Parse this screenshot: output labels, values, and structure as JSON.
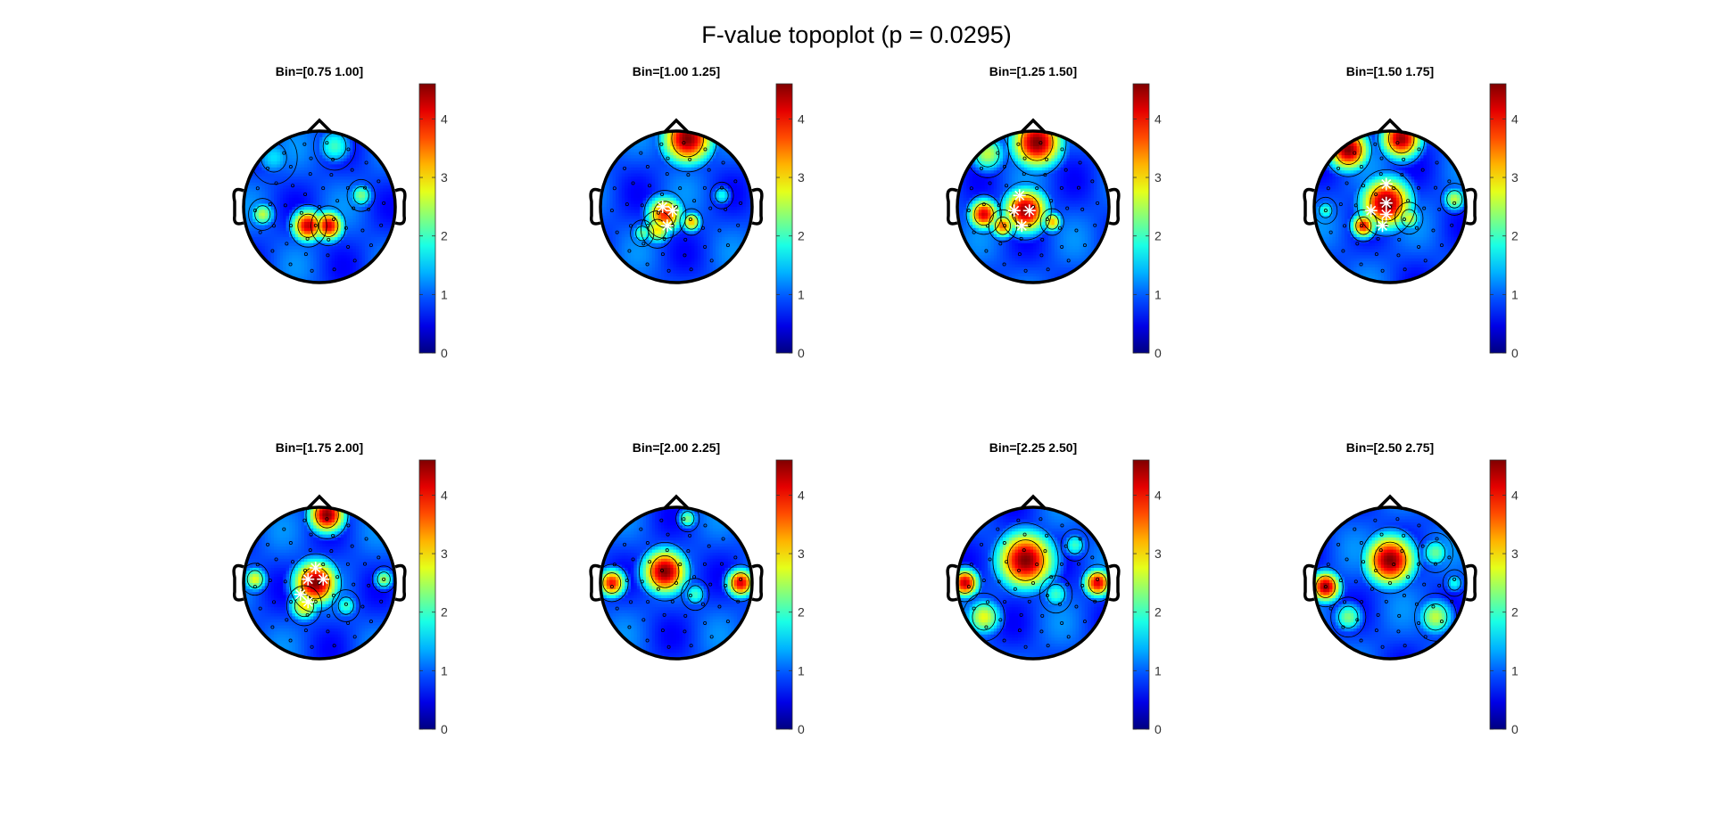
{
  "figure": {
    "title": "F-value topoplot (p = 0.0295)"
  },
  "chart_data": {
    "type": "heatmap",
    "title": "F-value topoplot (p = 0.0295)",
    "colormap": "jet",
    "clim": [
      0,
      4.6
    ],
    "colorbar_ticks": [
      0,
      1,
      2,
      3,
      4
    ],
    "panels": [
      {
        "title": "Bin=[0.75 1.00]",
        "hotspots": [
          {
            "x": -0.15,
            "y": -0.25,
            "f": 4.3,
            "r": 0.16
          },
          {
            "x": 0.12,
            "y": -0.25,
            "f": 4.2,
            "r": 0.15
          },
          {
            "x": -0.75,
            "y": -0.1,
            "f": 2.6,
            "r": 0.12
          },
          {
            "x": 0.55,
            "y": 0.15,
            "f": 2.3,
            "r": 0.12
          },
          {
            "x": 0.2,
            "y": 0.8,
            "f": 2.0,
            "r": 0.18
          },
          {
            "x": -0.6,
            "y": 0.65,
            "f": 1.6,
            "r": 0.2
          }
        ],
        "significant": []
      },
      {
        "title": "Bin=[1.00 1.25]",
        "hotspots": [
          {
            "x": 0.15,
            "y": 0.9,
            "f": 4.6,
            "r": 0.25
          },
          {
            "x": -0.15,
            "y": -0.1,
            "f": 3.9,
            "r": 0.18
          },
          {
            "x": -0.25,
            "y": -0.3,
            "f": 3.0,
            "r": 0.14
          },
          {
            "x": 0.2,
            "y": -0.2,
            "f": 3.2,
            "r": 0.1
          },
          {
            "x": -0.45,
            "y": -0.35,
            "f": 2.2,
            "r": 0.1
          },
          {
            "x": 0.6,
            "y": 0.15,
            "f": 1.8,
            "r": 0.1
          }
        ],
        "significant": [
          {
            "x": -0.18,
            "y": 0.0
          },
          {
            "x": -0.05,
            "y": -0.05
          },
          {
            "x": -0.12,
            "y": -0.25
          }
        ]
      },
      {
        "title": "Bin=[1.25 1.50]",
        "hotspots": [
          {
            "x": 0.05,
            "y": 0.85,
            "f": 4.6,
            "r": 0.25
          },
          {
            "x": -0.1,
            "y": -0.05,
            "f": 4.5,
            "r": 0.22
          },
          {
            "x": -0.65,
            "y": -0.1,
            "f": 4.2,
            "r": 0.15
          },
          {
            "x": -0.4,
            "y": -0.25,
            "f": 3.6,
            "r": 0.12
          },
          {
            "x": 0.25,
            "y": -0.2,
            "f": 3.2,
            "r": 0.1
          },
          {
            "x": -0.6,
            "y": 0.7,
            "f": 2.6,
            "r": 0.18
          }
        ],
        "significant": [
          {
            "x": -0.18,
            "y": 0.15
          },
          {
            "x": -0.05,
            "y": -0.05
          },
          {
            "x": -0.25,
            "y": -0.05
          },
          {
            "x": -0.15,
            "y": -0.25
          }
        ]
      },
      {
        "title": "Bin=[1.50 1.75]",
        "hotspots": [
          {
            "x": -0.55,
            "y": 0.75,
            "f": 4.6,
            "r": 0.2
          },
          {
            "x": 0.15,
            "y": 0.9,
            "f": 4.5,
            "r": 0.2
          },
          {
            "x": -0.05,
            "y": 0.05,
            "f": 4.6,
            "r": 0.25
          },
          {
            "x": -0.35,
            "y": -0.25,
            "f": 4.0,
            "r": 0.12
          },
          {
            "x": 0.25,
            "y": -0.15,
            "f": 2.7,
            "r": 0.12
          },
          {
            "x": 0.85,
            "y": 0.1,
            "f": 2.6,
            "r": 0.12
          },
          {
            "x": -0.85,
            "y": -0.05,
            "f": 2.0,
            "r": 0.1
          }
        ],
        "significant": [
          {
            "x": -0.05,
            "y": 0.3
          },
          {
            "x": -0.05,
            "y": 0.05
          },
          {
            "x": -0.25,
            "y": -0.05
          },
          {
            "x": -0.05,
            "y": -0.1
          },
          {
            "x": -0.1,
            "y": -0.25
          }
        ]
      },
      {
        "title": "Bin=[1.75 2.00]",
        "hotspots": [
          {
            "x": 0.1,
            "y": 0.9,
            "f": 4.6,
            "r": 0.18
          },
          {
            "x": -0.05,
            "y": 0.0,
            "f": 4.6,
            "r": 0.22
          },
          {
            "x": -0.2,
            "y": -0.3,
            "f": 3.0,
            "r": 0.15
          },
          {
            "x": -0.85,
            "y": 0.05,
            "f": 2.8,
            "r": 0.12
          },
          {
            "x": 0.85,
            "y": 0.05,
            "f": 2.5,
            "r": 0.1
          },
          {
            "x": 0.35,
            "y": -0.3,
            "f": 2.0,
            "r": 0.12
          }
        ],
        "significant": [
          {
            "x": -0.05,
            "y": 0.2
          },
          {
            "x": -0.15,
            "y": 0.05
          },
          {
            "x": 0.05,
            "y": 0.05
          },
          {
            "x": -0.25,
            "y": -0.15
          },
          {
            "x": -0.15,
            "y": -0.25
          }
        ]
      },
      {
        "title": "Bin=[2.00 2.25]",
        "hotspots": [
          {
            "x": -0.15,
            "y": 0.15,
            "f": 4.6,
            "r": 0.22
          },
          {
            "x": -0.85,
            "y": 0.0,
            "f": 4.0,
            "r": 0.14
          },
          {
            "x": 0.85,
            "y": 0.0,
            "f": 4.2,
            "r": 0.14
          },
          {
            "x": 0.15,
            "y": 0.85,
            "f": 2.3,
            "r": 0.1
          },
          {
            "x": 0.25,
            "y": -0.15,
            "f": 2.0,
            "r": 0.12
          }
        ],
        "significant": []
      },
      {
        "title": "Bin=[2.25 2.50]",
        "hotspots": [
          {
            "x": -0.1,
            "y": 0.3,
            "f": 4.6,
            "r": 0.28
          },
          {
            "x": -0.9,
            "y": 0.0,
            "f": 4.3,
            "r": 0.14
          },
          {
            "x": 0.85,
            "y": 0.0,
            "f": 4.2,
            "r": 0.14
          },
          {
            "x": -0.65,
            "y": -0.45,
            "f": 2.8,
            "r": 0.18
          },
          {
            "x": 0.3,
            "y": -0.15,
            "f": 2.0,
            "r": 0.14
          },
          {
            "x": 0.55,
            "y": 0.5,
            "f": 2.0,
            "r": 0.12
          }
        ],
        "significant": []
      },
      {
        "title": "Bin=[2.50 2.75]",
        "hotspots": [
          {
            "x": 0.0,
            "y": 0.3,
            "f": 4.6,
            "r": 0.25
          },
          {
            "x": -0.85,
            "y": -0.05,
            "f": 4.5,
            "r": 0.15
          },
          {
            "x": 0.6,
            "y": -0.45,
            "f": 2.6,
            "r": 0.18
          },
          {
            "x": -0.55,
            "y": -0.45,
            "f": 2.3,
            "r": 0.15
          },
          {
            "x": 0.6,
            "y": 0.4,
            "f": 2.2,
            "r": 0.15
          },
          {
            "x": 0.85,
            "y": 0.0,
            "f": 1.8,
            "r": 0.1
          }
        ],
        "significant": []
      }
    ]
  }
}
